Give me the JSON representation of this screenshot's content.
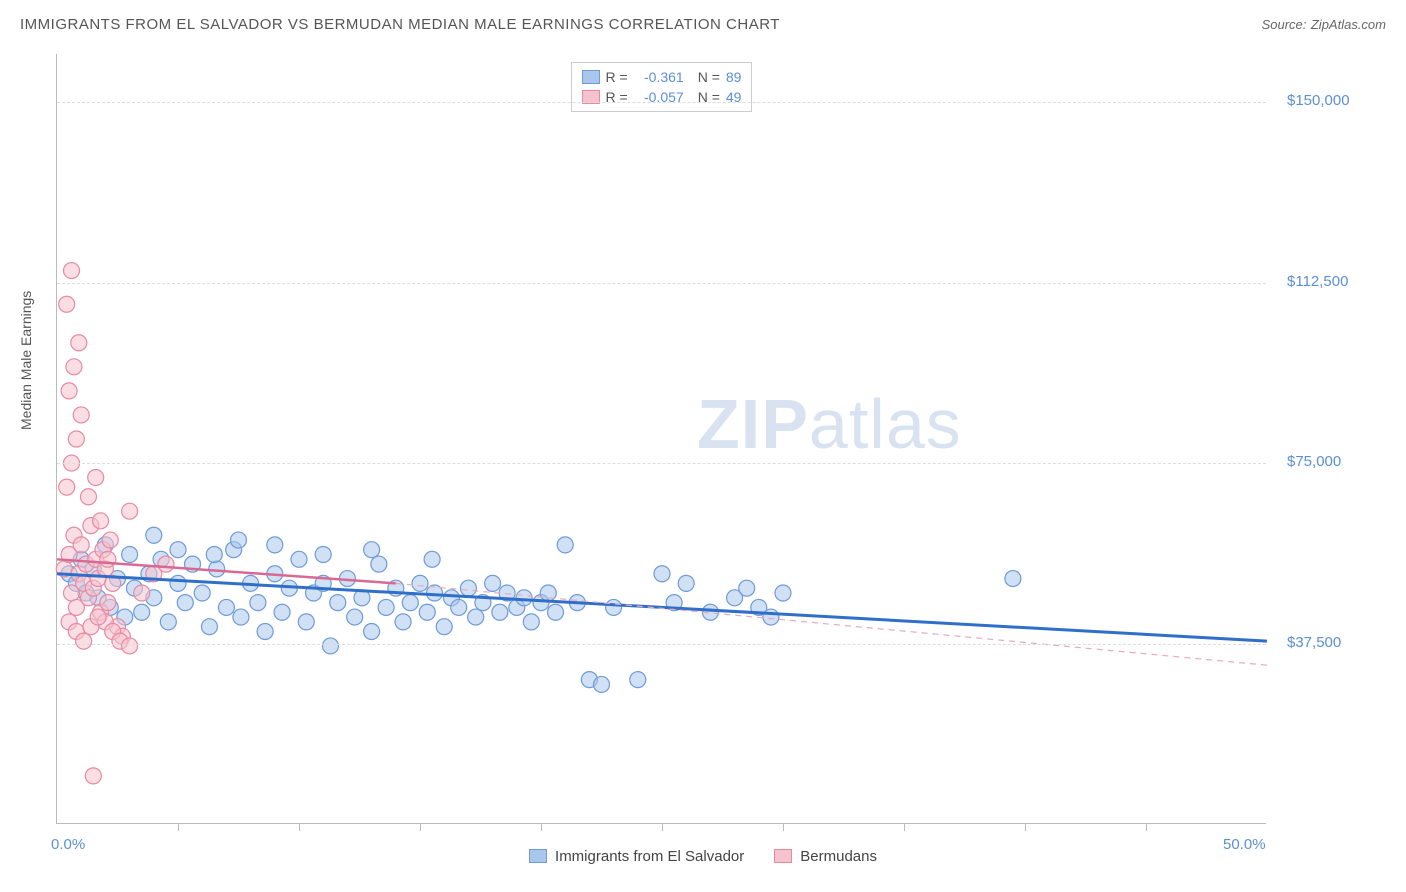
{
  "title": "IMMIGRANTS FROM EL SALVADOR VS BERMUDAN MEDIAN MALE EARNINGS CORRELATION CHART",
  "source_label": "Source:",
  "source_value": "ZipAtlas.com",
  "y_axis_label": "Median Male Earnings",
  "watermark_zip": "ZIP",
  "watermark_atlas": "atlas",
  "chart": {
    "type": "scatter",
    "xlim": [
      0,
      50
    ],
    "ylim": [
      0,
      160000
    ],
    "x_unit": "%",
    "y_unit": "$",
    "x_ticks_every_pct": 5,
    "x_tick_labels": [
      {
        "pos": 0,
        "label": "0.0%"
      },
      {
        "pos": 50,
        "label": "50.0%"
      }
    ],
    "y_tick_labels": [
      {
        "pos": 37500,
        "label": "$37,500"
      },
      {
        "pos": 75000,
        "label": "$75,000"
      },
      {
        "pos": 112500,
        "label": "$112,500"
      },
      {
        "pos": 150000,
        "label": "$150,000"
      }
    ],
    "grid_color": "#dddddd",
    "axis_color": "#bbbbbb",
    "background_color": "#ffffff",
    "point_radius": 8,
    "point_stroke_width": 1.2,
    "series": [
      {
        "name": "Immigrants from El Salvador",
        "fill_color": "#a9c6ec",
        "stroke_color": "#6f9bd8",
        "fill_opacity": 0.55,
        "R": "-0.361",
        "N": "89",
        "trend": {
          "x1": 0,
          "y1": 52000,
          "x2": 50,
          "y2": 38000,
          "color": "#2f6fc9",
          "width": 3,
          "dash": "none"
        },
        "points": [
          [
            0.5,
            52000
          ],
          [
            0.8,
            50000
          ],
          [
            1.0,
            55000
          ],
          [
            1.2,
            48000
          ],
          [
            1.5,
            53000
          ],
          [
            1.7,
            47000
          ],
          [
            2.0,
            58000
          ],
          [
            2.2,
            45000
          ],
          [
            2.5,
            51000
          ],
          [
            2.8,
            43000
          ],
          [
            3.0,
            56000
          ],
          [
            3.2,
            49000
          ],
          [
            3.5,
            44000
          ],
          [
            3.8,
            52000
          ],
          [
            4.0,
            47000
          ],
          [
            4.3,
            55000
          ],
          [
            4.6,
            42000
          ],
          [
            5.0,
            50000
          ],
          [
            5.3,
            46000
          ],
          [
            5.6,
            54000
          ],
          [
            6.0,
            48000
          ],
          [
            6.3,
            41000
          ],
          [
            6.6,
            53000
          ],
          [
            7.0,
            45000
          ],
          [
            7.3,
            57000
          ],
          [
            7.6,
            43000
          ],
          [
            8.0,
            50000
          ],
          [
            8.3,
            46000
          ],
          [
            8.6,
            40000
          ],
          [
            9.0,
            52000
          ],
          [
            9.3,
            44000
          ],
          [
            9.6,
            49000
          ],
          [
            10.0,
            55000
          ],
          [
            10.3,
            42000
          ],
          [
            10.6,
            48000
          ],
          [
            11.0,
            50000
          ],
          [
            11.3,
            37000
          ],
          [
            11.6,
            46000
          ],
          [
            12.0,
            51000
          ],
          [
            12.3,
            43000
          ],
          [
            12.6,
            47000
          ],
          [
            13.0,
            40000
          ],
          [
            13.3,
            54000
          ],
          [
            13.6,
            45000
          ],
          [
            14.0,
            49000
          ],
          [
            14.3,
            42000
          ],
          [
            14.6,
            46000
          ],
          [
            15.0,
            50000
          ],
          [
            15.3,
            44000
          ],
          [
            15.6,
            48000
          ],
          [
            16.0,
            41000
          ],
          [
            16.3,
            47000
          ],
          [
            16.6,
            45000
          ],
          [
            17.0,
            49000
          ],
          [
            17.3,
            43000
          ],
          [
            17.6,
            46000
          ],
          [
            18.0,
            50000
          ],
          [
            18.3,
            44000
          ],
          [
            18.6,
            48000
          ],
          [
            19.0,
            45000
          ],
          [
            19.3,
            47000
          ],
          [
            19.6,
            42000
          ],
          [
            20.0,
            46000
          ],
          [
            20.3,
            48000
          ],
          [
            20.6,
            44000
          ],
          [
            21.0,
            58000
          ],
          [
            21.5,
            46000
          ],
          [
            22.0,
            30000
          ],
          [
            22.5,
            29000
          ],
          [
            23.0,
            45000
          ],
          [
            24.0,
            30000
          ],
          [
            25.0,
            52000
          ],
          [
            25.5,
            46000
          ],
          [
            26.0,
            50000
          ],
          [
            27.0,
            44000
          ],
          [
            28.0,
            47000
          ],
          [
            28.5,
            49000
          ],
          [
            29.0,
            45000
          ],
          [
            29.5,
            43000
          ],
          [
            30.0,
            48000
          ],
          [
            39.5,
            51000
          ],
          [
            5.0,
            57000
          ],
          [
            7.5,
            59000
          ],
          [
            9.0,
            58000
          ],
          [
            11.0,
            56000
          ],
          [
            13.0,
            57000
          ],
          [
            15.5,
            55000
          ],
          [
            4.0,
            60000
          ],
          [
            6.5,
            56000
          ]
        ]
      },
      {
        "name": "Bermudans",
        "fill_color": "#f5c2ce",
        "stroke_color": "#e68aa3",
        "fill_opacity": 0.55,
        "R": "-0.057",
        "N": "49",
        "trend_solid": {
          "x1": 0,
          "y1": 55000,
          "x2": 14,
          "y2": 50000,
          "color": "#d96894",
          "width": 2.5,
          "dash": "none"
        },
        "trend_dash": {
          "x1": 14,
          "y1": 50000,
          "x2": 50,
          "y2": 33000,
          "color": "#e9a9bc",
          "width": 1.2,
          "dash": "6,5"
        },
        "points": [
          [
            0.3,
            53000
          ],
          [
            0.5,
            56000
          ],
          [
            0.6,
            48000
          ],
          [
            0.7,
            60000
          ],
          [
            0.8,
            45000
          ],
          [
            0.9,
            52000
          ],
          [
            1.0,
            58000
          ],
          [
            1.1,
            50000
          ],
          [
            1.2,
            54000
          ],
          [
            1.3,
            47000
          ],
          [
            1.4,
            62000
          ],
          [
            1.5,
            49000
          ],
          [
            1.6,
            55000
          ],
          [
            1.7,
            51000
          ],
          [
            1.8,
            44000
          ],
          [
            1.9,
            57000
          ],
          [
            2.0,
            53000
          ],
          [
            2.1,
            46000
          ],
          [
            2.2,
            59000
          ],
          [
            2.3,
            50000
          ],
          [
            2.5,
            41000
          ],
          [
            2.7,
            39000
          ],
          [
            3.0,
            65000
          ],
          [
            0.4,
            70000
          ],
          [
            0.6,
            75000
          ],
          [
            0.8,
            80000
          ],
          [
            1.0,
            85000
          ],
          [
            0.5,
            90000
          ],
          [
            0.7,
            95000
          ],
          [
            0.9,
            100000
          ],
          [
            0.4,
            108000
          ],
          [
            0.6,
            115000
          ],
          [
            1.3,
            68000
          ],
          [
            1.6,
            72000
          ],
          [
            2.0,
            42000
          ],
          [
            2.3,
            40000
          ],
          [
            2.6,
            38000
          ],
          [
            3.0,
            37000
          ],
          [
            0.5,
            42000
          ],
          [
            0.8,
            40000
          ],
          [
            1.1,
            38000
          ],
          [
            1.4,
            41000
          ],
          [
            1.7,
            43000
          ],
          [
            3.5,
            48000
          ],
          [
            4.0,
            52000
          ],
          [
            4.5,
            54000
          ],
          [
            1.5,
            10000
          ],
          [
            1.8,
            63000
          ],
          [
            2.1,
            55000
          ]
        ]
      }
    ]
  },
  "legend_bottom": [
    {
      "swatch_fill": "#a9c6ec",
      "swatch_stroke": "#6f9bd8",
      "label": "Immigrants from El Salvador"
    },
    {
      "swatch_fill": "#f5c2ce",
      "swatch_stroke": "#e68aa3",
      "label": "Bermudans"
    }
  ]
}
